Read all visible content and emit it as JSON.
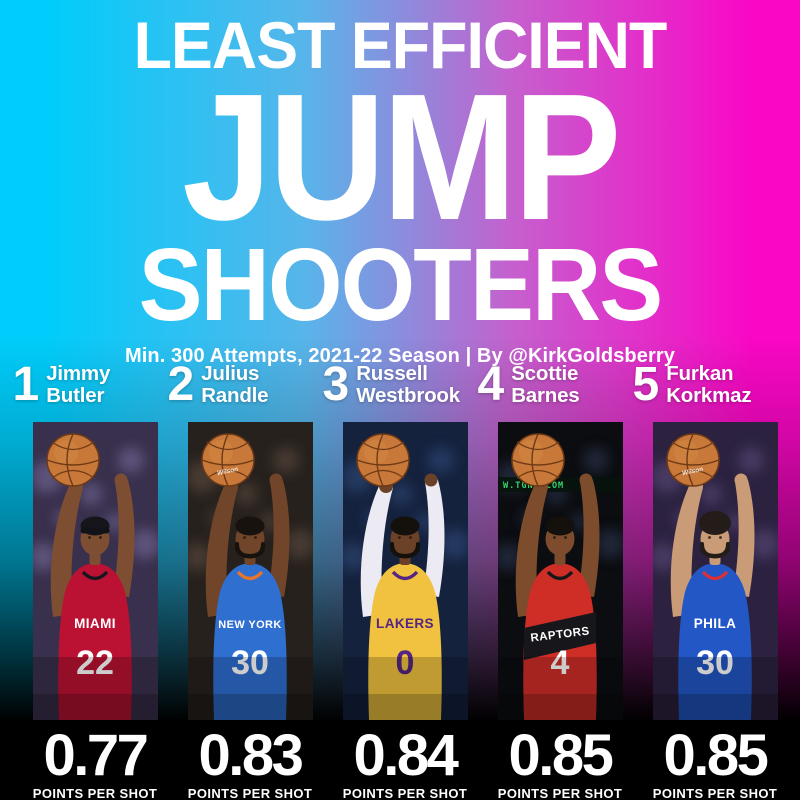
{
  "header": {
    "title_line_1": "LEAST EFFICIENT",
    "title_line_2": "JUMP",
    "title_line_3": "SHOOTERS",
    "subtitle": "Min. 300 Attempts, 2021-22 Season | By @KirkGoldsberry"
  },
  "stat_label": "POINTS PER SHOT",
  "background": {
    "gradient_left": "#00cdfb",
    "gradient_right": "#fa07c5",
    "bottom_fade": "#000000",
    "text": "#ffffff"
  },
  "illustration_shared": {
    "ball_fill": "#c8793a",
    "ball_seam": "#6e3a16",
    "ball_highlight": "#d98f4b"
  },
  "players": [
    {
      "rank": "1",
      "first_name": "Jimmy",
      "last_name": "Butler",
      "value": "0.77",
      "jersey_text": "MIAMI",
      "jersey_number": "22",
      "photo_caption": "",
      "ball_text": "",
      "illustration": {
        "photo_bg": "#39304d",
        "crowd_tint": "#756a99",
        "jersey": "#bb1233",
        "jersey_trim": "#16161e",
        "jersey_text_color": "#ffffff",
        "number_color": "#ffffff",
        "skin": "#7d4e31",
        "hair": "#15151b",
        "headband": true,
        "beard": false,
        "big_hair": false,
        "chevron": false,
        "sleeves": "",
        "caption_color": ""
      }
    },
    {
      "rank": "2",
      "first_name": "Julius",
      "last_name": "Randle",
      "value": "0.83",
      "jersey_text": "NEW YORK",
      "jersey_number": "30",
      "photo_caption": "",
      "ball_text": "Wilson",
      "illustration": {
        "photo_bg": "#27211d",
        "crowd_tint": "#5b4c40",
        "jersey": "#2e6fd0",
        "jersey_trim": "#e8742c",
        "jersey_text_color": "#ffffff",
        "number_color": "#ffffff",
        "skin": "#70452a",
        "hair": "#17120e",
        "headband": false,
        "beard": true,
        "big_hair": false,
        "chevron": false,
        "sleeves": "",
        "caption_color": ""
      }
    },
    {
      "rank": "3",
      "first_name": "Russell",
      "last_name": "Westbrook",
      "value": "0.84",
      "jersey_text": "LAKERS",
      "jersey_number": "0",
      "photo_caption": "",
      "ball_text": "",
      "illustration": {
        "photo_bg": "#15223e",
        "crowd_tint": "#2f4a77",
        "jersey": "#f0c23f",
        "jersey_trim": "#552583",
        "jersey_text_color": "#552583",
        "number_color": "#552583",
        "skin": "#6b4227",
        "hair": "#14100c",
        "headband": false,
        "beard": true,
        "big_hair": false,
        "chevron": false,
        "sleeves": "#eceaf2",
        "caption_color": ""
      }
    },
    {
      "rank": "4",
      "first_name": "Scottie",
      "last_name": "Barnes",
      "value": "0.85",
      "jersey_text": "RAPTORS",
      "jersey_number": "4",
      "photo_caption": "W.TGNA.COM",
      "ball_text": "",
      "illustration": {
        "photo_bg": "#0c0d11",
        "crowd_tint": "#2a3450",
        "jersey": "#cf2e27",
        "jersey_trim": "#17171b",
        "jersey_text_color": "#ffffff",
        "number_color": "#ffffff",
        "skin": "#7c4c2c",
        "hair": "#14100c",
        "headband": false,
        "beard": false,
        "big_hair": false,
        "chevron": true,
        "sleeves": "",
        "caption_color": "#3ad36a"
      }
    },
    {
      "rank": "5",
      "first_name": "Furkan",
      "last_name": "Korkmaz",
      "value": "0.85",
      "jersey_text": "PHILA",
      "jersey_number": "30",
      "photo_caption": "",
      "ball_text": "Wilson",
      "illustration": {
        "photo_bg": "#2c2240",
        "crowd_tint": "#5a4a78",
        "jersey": "#2257c5",
        "jersey_trim": "#d6303a",
        "jersey_text_color": "#ffffff",
        "number_color": "#ffffff",
        "skin": "#c99b77",
        "hair": "#241c18",
        "headband": false,
        "beard": true,
        "big_hair": true,
        "chevron": false,
        "sleeves": "",
        "caption_color": ""
      }
    }
  ],
  "chart_data": {
    "type": "bar",
    "title": "Least Efficient Jump Shooters",
    "subtitle": "Min. 300 Attempts, 2021-22 Season | By @KirkGoldsberry",
    "categories": [
      "Jimmy Butler",
      "Julius Randle",
      "Russell Westbrook",
      "Scottie Barnes",
      "Furkan Korkmaz"
    ],
    "ranks": [
      1,
      2,
      3,
      4,
      5
    ],
    "values": [
      0.77,
      0.83,
      0.84,
      0.85,
      0.85
    ],
    "jersey_numbers": [
      "22",
      "30",
      "0",
      "4",
      "30"
    ],
    "ylabel": "Points per shot",
    "value_unit": "points per shot"
  }
}
